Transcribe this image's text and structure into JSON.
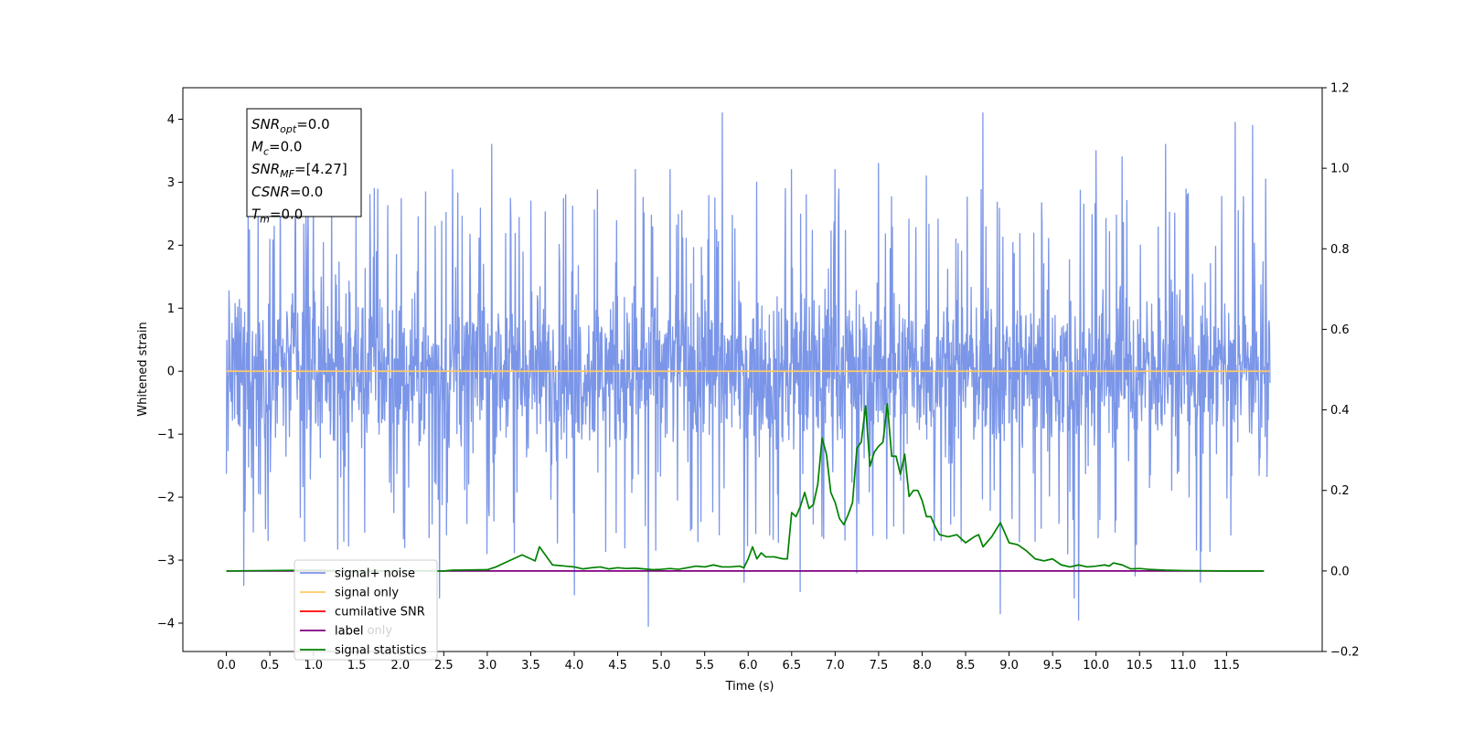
{
  "chart_data": {
    "type": "line",
    "xlabel": "Time (s)",
    "ylabel": "Whitened strain",
    "xlim": [
      -0.5,
      12.6
    ],
    "ylim": [
      -4.45,
      4.5
    ],
    "y2lim": [
      -0.2,
      1.2
    ],
    "x_ticks": [
      "0.0",
      "0.5",
      "1.0",
      "1.5",
      "2.0",
      "2.5",
      "3.0",
      "3.5",
      "4.0",
      "4.5",
      "5.0",
      "5.5",
      "6.0",
      "6.5",
      "7.0",
      "7.5",
      "8.0",
      "8.5",
      "9.0",
      "9.5",
      "10.0",
      "10.5",
      "11.0",
      "11.5"
    ],
    "y_ticks": [
      "−4",
      "−3",
      "−2",
      "−1",
      "0",
      "1",
      "2",
      "3",
      "4"
    ],
    "y2_ticks": [
      "−0.2",
      "0.0",
      "0.2",
      "0.4",
      "0.6",
      "0.8",
      "1.0",
      "1.2"
    ],
    "info_box": [
      {
        "sym": "SNR",
        "sub": "opt",
        "val": "=0.0"
      },
      {
        "sym": "M",
        "sub": "c",
        "val": "=0.0"
      },
      {
        "sym": "SNR",
        "sub": "MF",
        "val": "=[4.27]"
      },
      {
        "sym": "CSNR",
        "sub": "",
        "val": "=0.0"
      },
      {
        "sym": "T",
        "sub": "m",
        "val": "=0.0"
      }
    ],
    "legend": {
      "position": "lower-left",
      "entries": [
        {
          "name": "signal+ noise",
          "color": "#7b96e8"
        },
        {
          "name": "signal only",
          "color": "#ffc966"
        },
        {
          "name": "cumilative SNR",
          "color": "#ff0000"
        },
        {
          "name": "label",
          "color": "#800080"
        },
        {
          "name": "signal statistics",
          "color": "#008000"
        }
      ],
      "hidden_text": "label only"
    },
    "series": [
      {
        "name": "signal+ noise",
        "axis": "left",
        "color": "#7b96e8",
        "kind": "noise",
        "x_range": [
          0.0,
          12.0
        ],
        "typical_range": [
          -1.6,
          1.6
        ],
        "peaks": [
          {
            "x": 0.25,
            "y": 2.5
          },
          {
            "x": 0.55,
            "y": 2.3
          },
          {
            "x": 1.0,
            "y": 3.0
          },
          {
            "x": 1.35,
            "y": 2.4
          },
          {
            "x": 1.7,
            "y": 2.9
          },
          {
            "x": 2.4,
            "y": 2.3
          },
          {
            "x": 2.6,
            "y": 3.2
          },
          {
            "x": 3.05,
            "y": 3.6
          },
          {
            "x": 3.5,
            "y": 2.7
          },
          {
            "x": 3.9,
            "y": 2.8
          },
          {
            "x": 4.7,
            "y": 3.2
          },
          {
            "x": 5.1,
            "y": 3.2
          },
          {
            "x": 5.35,
            "y": 3.3
          },
          {
            "x": 5.7,
            "y": 4.1
          },
          {
            "x": 6.1,
            "y": 3.0
          },
          {
            "x": 6.5,
            "y": 3.2
          },
          {
            "x": 7.0,
            "y": 3.2
          },
          {
            "x": 7.5,
            "y": 3.3
          },
          {
            "x": 8.05,
            "y": 3.1
          },
          {
            "x": 8.7,
            "y": 4.1
          },
          {
            "x": 9.3,
            "y": 3.4
          },
          {
            "x": 9.75,
            "y": 3.6
          },
          {
            "x": 10.0,
            "y": 3.5
          },
          {
            "x": 10.3,
            "y": 3.4
          },
          {
            "x": 10.8,
            "y": 3.6
          },
          {
            "x": 11.05,
            "y": 2.8
          },
          {
            "x": 11.6,
            "y": 3.95
          },
          {
            "x": 11.8,
            "y": 3.9
          },
          {
            "x": 11.95,
            "y": 3.05
          }
        ],
        "troughs": [
          {
            "x": 0.2,
            "y": -3.4
          },
          {
            "x": 0.45,
            "y": -2.5
          },
          {
            "x": 0.9,
            "y": -2.7
          },
          {
            "x": 1.35,
            "y": -2.7
          },
          {
            "x": 2.05,
            "y": -2.8
          },
          {
            "x": 2.45,
            "y": -3.6
          },
          {
            "x": 2.8,
            "y": -3.6
          },
          {
            "x": 3.3,
            "y": -2.4
          },
          {
            "x": 4.0,
            "y": -3.55
          },
          {
            "x": 4.85,
            "y": -4.05
          },
          {
            "x": 5.35,
            "y": -2.5
          },
          {
            "x": 5.95,
            "y": -3.35
          },
          {
            "x": 6.25,
            "y": -2.6
          },
          {
            "x": 6.6,
            "y": -3.5
          },
          {
            "x": 7.25,
            "y": -3.2
          },
          {
            "x": 7.85,
            "y": -2.6
          },
          {
            "x": 8.45,
            "y": -2.7
          },
          {
            "x": 8.9,
            "y": -3.85
          },
          {
            "x": 9.3,
            "y": -2.7
          },
          {
            "x": 9.75,
            "y": -3.6
          },
          {
            "x": 9.8,
            "y": -3.95
          },
          {
            "x": 10.45,
            "y": -3.25
          },
          {
            "x": 11.2,
            "y": -3.35
          },
          {
            "x": 11.55,
            "y": -2.6
          }
        ]
      },
      {
        "name": "signal only",
        "axis": "left",
        "color": "#ffc966",
        "x": [
          0.0,
          12.0
        ],
        "y": [
          0.0,
          0.0
        ]
      },
      {
        "name": "label",
        "axis": "right",
        "color": "#800080",
        "x": [
          0.0,
          11.93
        ],
        "y": [
          0.0,
          0.0
        ]
      },
      {
        "name": "signal statistics",
        "axis": "right",
        "color": "#008000",
        "x": [
          0.0,
          0.5,
          1.0,
          1.5,
          2.0,
          2.5,
          2.6,
          3.0,
          3.1,
          3.2,
          3.3,
          3.4,
          3.5,
          3.55,
          3.6,
          3.65,
          3.75,
          3.9,
          4.0,
          4.1,
          4.2,
          4.3,
          4.4,
          4.5,
          4.6,
          4.7,
          4.8,
          4.9,
          5.0,
          5.1,
          5.2,
          5.3,
          5.4,
          5.5,
          5.6,
          5.7,
          5.8,
          5.9,
          5.95,
          6.0,
          6.05,
          6.1,
          6.15,
          6.2,
          6.3,
          6.4,
          6.45,
          6.5,
          6.55,
          6.6,
          6.65,
          6.7,
          6.75,
          6.8,
          6.85,
          6.9,
          6.95,
          7.0,
          7.05,
          7.1,
          7.15,
          7.2,
          7.25,
          7.3,
          7.35,
          7.4,
          7.45,
          7.5,
          7.55,
          7.6,
          7.65,
          7.7,
          7.75,
          7.8,
          7.85,
          7.9,
          7.95,
          8.0,
          8.05,
          8.1,
          8.15,
          8.2,
          8.3,
          8.4,
          8.5,
          8.6,
          8.65,
          8.7,
          8.8,
          8.9,
          9.0,
          9.1,
          9.2,
          9.3,
          9.4,
          9.5,
          9.6,
          9.7,
          9.8,
          9.9,
          10.0,
          10.1,
          10.15,
          10.2,
          10.3,
          10.4,
          10.5,
          10.6,
          10.8,
          11.0,
          11.5,
          11.93
        ],
        "y": [
          0.0,
          0.001,
          0.002,
          0.0,
          0.001,
          0.0,
          0.002,
          0.003,
          0.01,
          0.02,
          0.03,
          0.04,
          0.03,
          0.025,
          0.06,
          0.045,
          0.015,
          0.012,
          0.01,
          0.005,
          0.008,
          0.01,
          0.005,
          0.008,
          0.006,
          0.007,
          0.005,
          0.003,
          0.004,
          0.006,
          0.004,
          0.008,
          0.012,
          0.01,
          0.015,
          0.01,
          0.01,
          0.012,
          0.008,
          0.03,
          0.06,
          0.03,
          0.045,
          0.035,
          0.035,
          0.03,
          0.03,
          0.145,
          0.135,
          0.16,
          0.195,
          0.155,
          0.165,
          0.215,
          0.33,
          0.29,
          0.195,
          0.17,
          0.13,
          0.115,
          0.14,
          0.17,
          0.305,
          0.32,
          0.41,
          0.26,
          0.295,
          0.31,
          0.32,
          0.415,
          0.285,
          0.285,
          0.24,
          0.29,
          0.185,
          0.2,
          0.2,
          0.175,
          0.135,
          0.135,
          0.11,
          0.09,
          0.085,
          0.09,
          0.07,
          0.085,
          0.09,
          0.06,
          0.085,
          0.12,
          0.07,
          0.065,
          0.05,
          0.03,
          0.025,
          0.03,
          0.015,
          0.01,
          0.015,
          0.01,
          0.012,
          0.015,
          0.012,
          0.02,
          0.015,
          0.005,
          0.006,
          0.004,
          0.002,
          0.001,
          0.0,
          0.0
        ]
      }
    ]
  }
}
